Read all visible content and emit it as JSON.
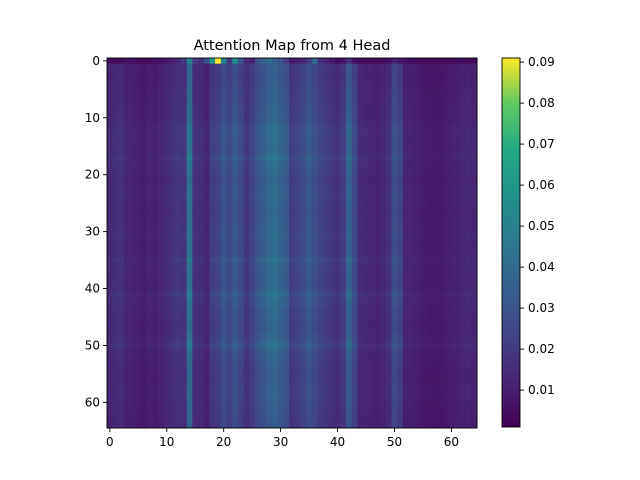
{
  "chart_data": {
    "type": "heatmap",
    "title": "Attention Map from 4 Head",
    "xlabel": "",
    "ylabel": "",
    "rows": 65,
    "cols": 65,
    "x_ticks": [
      0,
      10,
      20,
      30,
      40,
      50,
      60
    ],
    "y_ticks": [
      0,
      10,
      20,
      30,
      40,
      50,
      60
    ],
    "xlim": [
      -0.5,
      64.5
    ],
    "ylim": [
      64.5,
      -0.5
    ],
    "colormap": "viridis",
    "colorbar": {
      "min": 0.001,
      "max": 0.091,
      "ticks": [
        0.01,
        0.02,
        0.03,
        0.04,
        0.05,
        0.06,
        0.07,
        0.08,
        0.09
      ],
      "tick_labels": [
        "0.01",
        "0.02",
        "0.03",
        "0.04",
        "0.05",
        "0.06",
        "0.07",
        "0.08",
        "0.09"
      ]
    },
    "column_profile": [
      0.013,
      0.015,
      0.016,
      0.012,
      0.011,
      0.01,
      0.009,
      0.011,
      0.01,
      0.012,
      0.014,
      0.016,
      0.018,
      0.017,
      0.04,
      0.016,
      0.015,
      0.012,
      0.02,
      0.022,
      0.028,
      0.024,
      0.03,
      0.024,
      0.018,
      0.022,
      0.028,
      0.032,
      0.036,
      0.038,
      0.034,
      0.03,
      0.02,
      0.022,
      0.025,
      0.03,
      0.026,
      0.022,
      0.02,
      0.018,
      0.016,
      0.02,
      0.034,
      0.024,
      0.014,
      0.013,
      0.012,
      0.011,
      0.013,
      0.016,
      0.026,
      0.022,
      0.012,
      0.011,
      0.01,
      0.009,
      0.008,
      0.008,
      0.008,
      0.009,
      0.01,
      0.011,
      0.012,
      0.013,
      0.012
    ],
    "row_profile": [
      0.15,
      0.95,
      0.92,
      0.9,
      0.93,
      0.95,
      0.97,
      0.96,
      0.99,
      1.02,
      1.0,
      1.05,
      1.15,
      1.1,
      1.12,
      1.08,
      1.1,
      1.2,
      1.12,
      1.1,
      1.08,
      1.0,
      1.05,
      1.1,
      1.08,
      1.06,
      1.04,
      1.02,
      1.05,
      1.06,
      1.08,
      1.1,
      1.05,
      1.04,
      1.06,
      1.18,
      1.1,
      1.08,
      1.06,
      1.04,
      1.08,
      1.22,
      1.12,
      1.1,
      1.04,
      1.06,
      1.02,
      1.0,
      1.06,
      1.08,
      1.2,
      1.05,
      1.0,
      0.98,
      0.96,
      0.94,
      0.95,
      0.96,
      0.98,
      0.97,
      0.95,
      0.93,
      0.92,
      0.9,
      0.9
    ],
    "first_row_values": [
      0.004,
      0.004,
      0.005,
      0.006,
      0.006,
      0.005,
      0.005,
      0.005,
      0.006,
      0.006,
      0.008,
      0.01,
      0.014,
      0.02,
      0.05,
      0.02,
      0.016,
      0.03,
      0.06,
      0.091,
      0.05,
      0.02,
      0.055,
      0.03,
      0.015,
      0.012,
      0.03,
      0.036,
      0.04,
      0.035,
      0.03,
      0.02,
      0.008,
      0.01,
      0.012,
      0.02,
      0.04,
      0.016,
      0.012,
      0.008,
      0.005,
      0.008,
      0.016,
      0.006,
      0.004,
      0.005,
      0.004,
      0.004,
      0.005,
      0.006,
      0.012,
      0.008,
      0.006,
      0.005,
      0.005,
      0.005,
      0.004,
      0.004,
      0.004,
      0.004,
      0.005,
      0.005,
      0.005,
      0.004,
      0.004
    ]
  }
}
